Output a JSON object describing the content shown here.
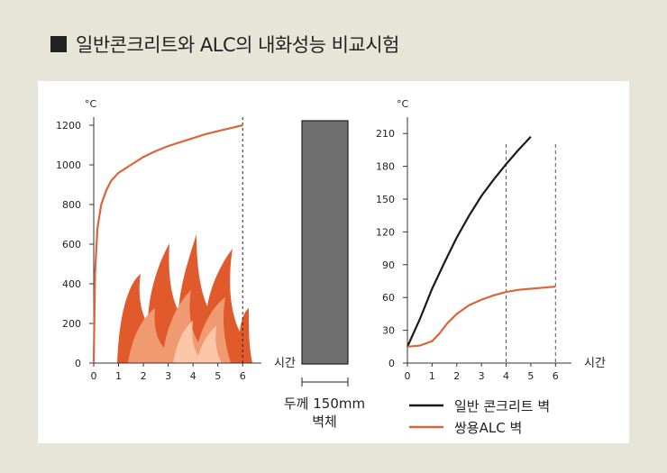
{
  "header": {
    "title": "일반콘크리트와 ALC의 내화성능 비교시험"
  },
  "chart_data": [
    {
      "type": "line",
      "unit_label": "°C",
      "x_ticks": [
        "0",
        "1",
        "2",
        "3",
        "4",
        "5",
        "6"
      ],
      "y_ticks": [
        "0",
        "200",
        "400",
        "600",
        "800",
        "1000",
        "1200"
      ],
      "x_axis_label": "시간",
      "ylim": [
        0,
        1300
      ],
      "xlim": [
        0,
        6.5
      ],
      "vline_x": 6,
      "series": [
        {
          "color": "#d9663a",
          "x": [
            0,
            0.05,
            0.15,
            0.3,
            0.5,
            0.7,
            1.0,
            1.5,
            2.0,
            2.5,
            3.0,
            3.5,
            4.0,
            4.5,
            5.0,
            5.5,
            6.0
          ],
          "y": [
            0,
            450,
            680,
            800,
            870,
            920,
            960,
            1000,
            1040,
            1070,
            1095,
            1115,
            1135,
            1155,
            1170,
            1185,
            1200
          ]
        }
      ]
    },
    {
      "type": "bar",
      "caption_line1": "두께 150mm",
      "caption_line2": "벽체",
      "color": "#6f6f6f"
    },
    {
      "type": "line",
      "unit_label": "°C",
      "x_ticks": [
        "0",
        "1",
        "2",
        "3",
        "4",
        "5",
        "6"
      ],
      "y_ticks": [
        "0",
        "30",
        "60",
        "90",
        "120",
        "150",
        "180",
        "210"
      ],
      "x_axis_label": "시간",
      "ylim": [
        0,
        225
      ],
      "xlim": [
        0,
        6.5
      ],
      "vlines_x": [
        4,
        6
      ],
      "series": [
        {
          "name": "일반 콘크리트 벽",
          "color": "#1a1a1a",
          "x": [
            0,
            0.5,
            1.0,
            1.5,
            2.0,
            2.5,
            3.0,
            3.5,
            4.0,
            4.5,
            5.0
          ],
          "y": [
            15,
            40,
            68,
            92,
            115,
            135,
            153,
            168,
            182,
            195,
            207
          ]
        },
        {
          "name": "쌍용ALC 벽",
          "color": "#d9663a",
          "x": [
            0,
            0.5,
            1.0,
            1.3,
            1.6,
            2.0,
            2.5,
            3.0,
            3.5,
            4.0,
            4.5,
            5.0,
            5.5,
            6.0
          ],
          "y": [
            15,
            16,
            20,
            27,
            36,
            45,
            53,
            58,
            62,
            65,
            67,
            68,
            69,
            70
          ]
        }
      ]
    }
  ]
}
